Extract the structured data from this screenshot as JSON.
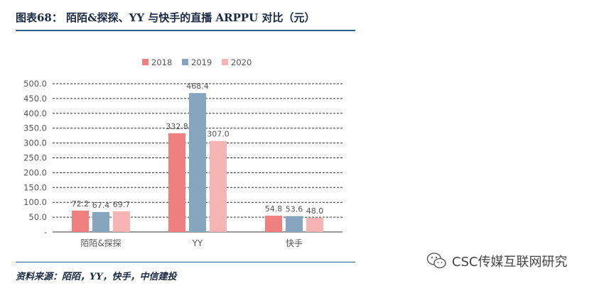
{
  "figure": {
    "title": "图表68： 陌陌&探探、YY 与快手的直播 ARPPU 对比（元）",
    "source": "资料来源：陌陌，YY，快手，中信建投",
    "watermark": "CSC传媒互联网研究"
  },
  "colors": {
    "2018": "#f08080",
    "2019": "#86a6bf",
    "2020": "#f7b4b4",
    "grid": "#333333",
    "axis_text": "#555555"
  },
  "chart_data": {
    "type": "bar",
    "categories": [
      "陌陌&探探",
      "YY",
      "快手"
    ],
    "series": [
      {
        "name": "2018",
        "values": [
          72.2,
          332.8,
          54.8
        ],
        "labels": [
          "72.2",
          "332.8",
          "54.8"
        ]
      },
      {
        "name": "2019",
        "values": [
          67.4,
          468.4,
          53.6
        ],
        "labels": [
          "67.4",
          "468.4",
          "53.6"
        ]
      },
      {
        "name": "2020",
        "values": [
          69.7,
          307.0,
          48.0
        ],
        "labels": [
          "69.7",
          "307.0",
          "48.0"
        ]
      }
    ],
    "yticks": [
      "-",
      "50.0",
      "100.0",
      "150.0",
      "200.0",
      "250.0",
      "300.0",
      "350.0",
      "400.0",
      "450.0",
      "500.0"
    ],
    "ylim": [
      0,
      500
    ],
    "grid": true,
    "legend_position": "top-center"
  }
}
